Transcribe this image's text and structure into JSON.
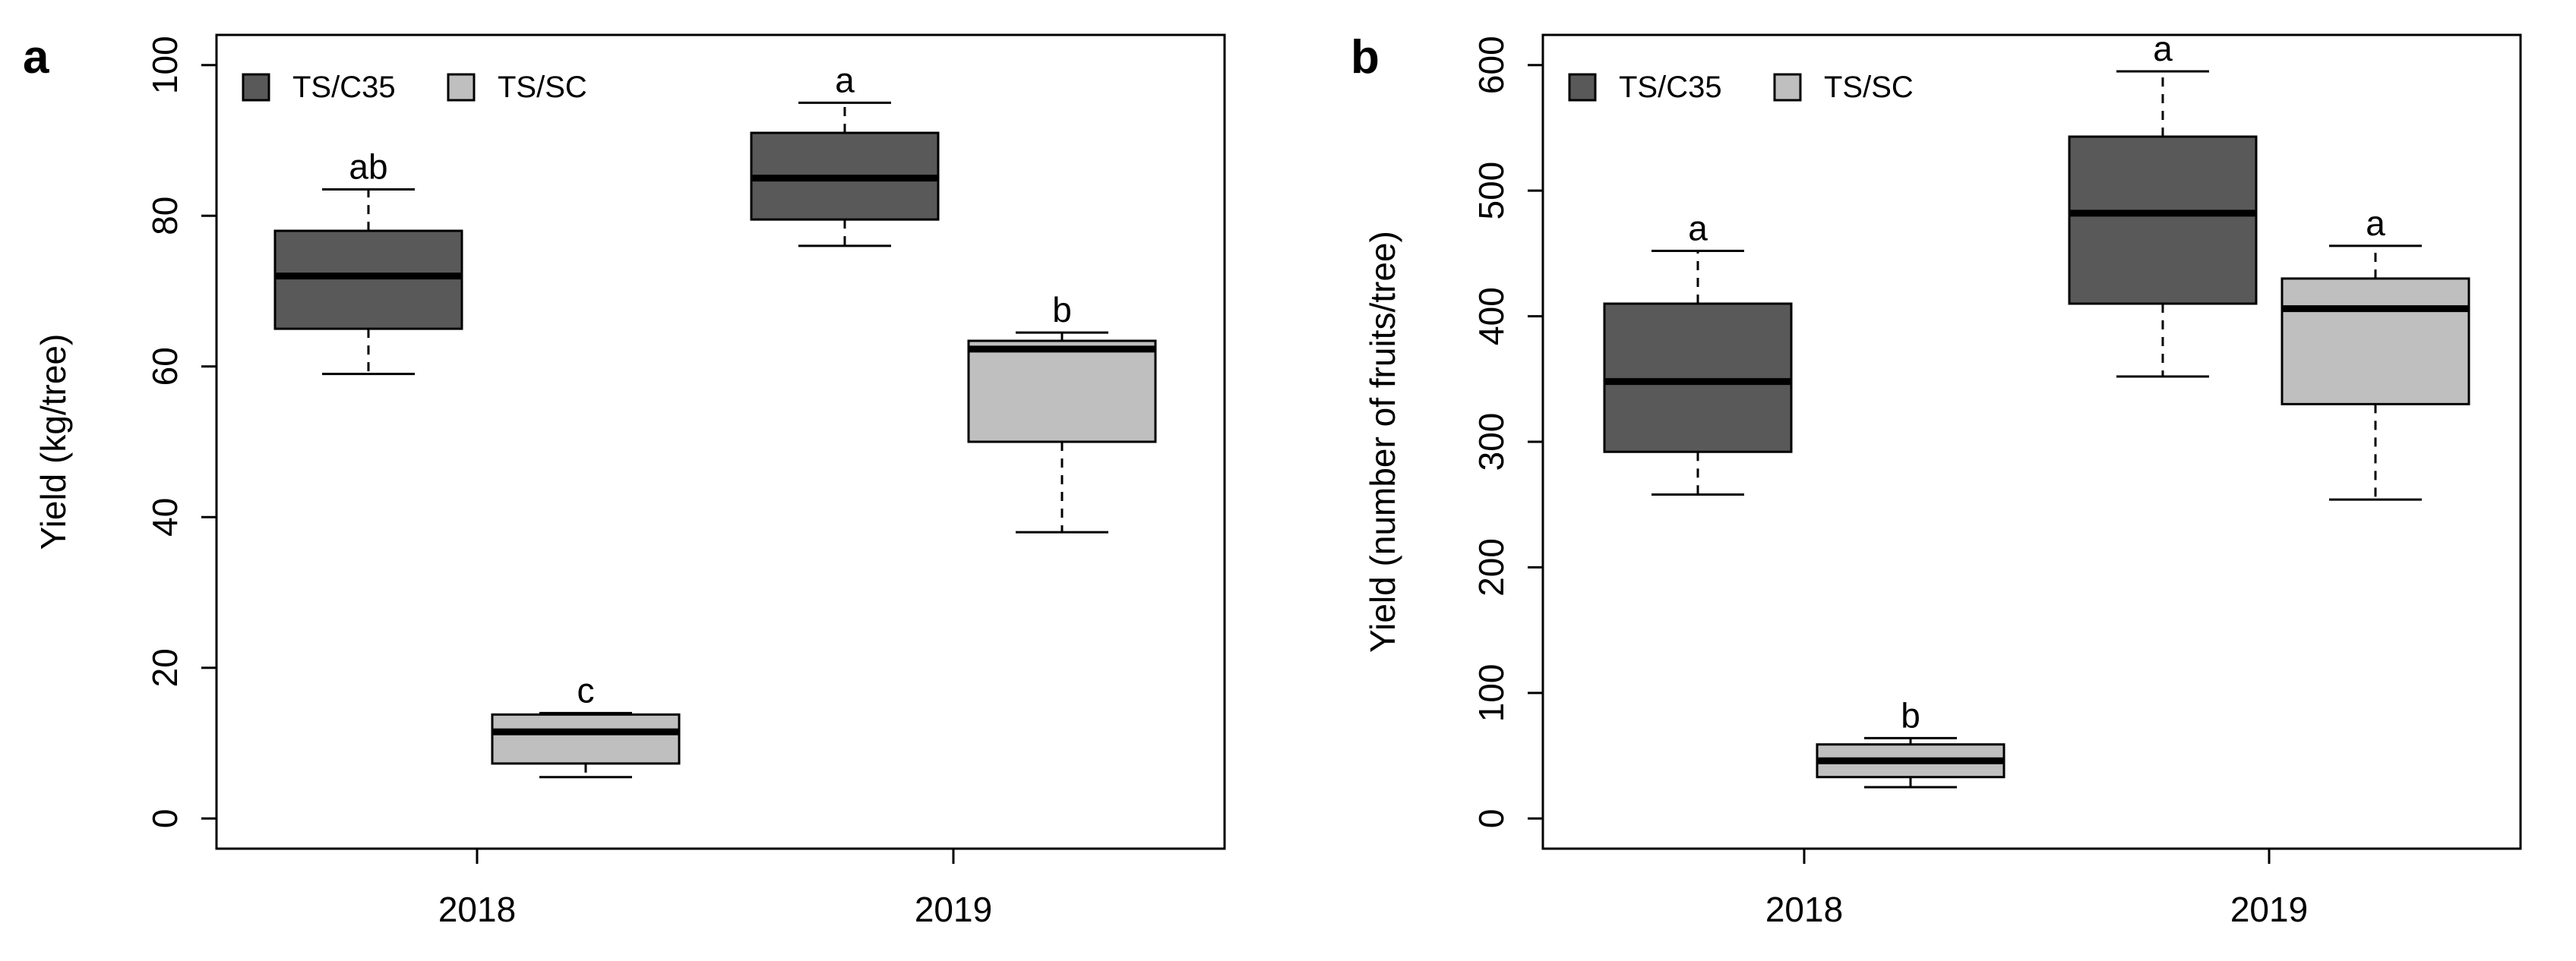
{
  "chart_data": [
    {
      "type": "boxplot",
      "panel": "a",
      "ylabel": "Yield (kg/tree)",
      "xlabel": "",
      "ylim": [
        -4,
        104
      ],
      "yticks": [
        0,
        20,
        40,
        60,
        80,
        100
      ],
      "categories": [
        "2018",
        "2019"
      ],
      "legend": {
        "placement": "top-left",
        "entries": [
          {
            "name": "TS/C35",
            "color": "#595959"
          },
          {
            "name": "TS/SC",
            "color": "#bfbfbf"
          }
        ]
      },
      "boxes": [
        {
          "category": "2018",
          "series": "TS/C35",
          "min": 59,
          "q1": 65,
          "median": 72,
          "q3": 78,
          "max": 83.5,
          "letter": "ab"
        },
        {
          "category": "2018",
          "series": "TS/SC",
          "min": 5.5,
          "q1": 7.3,
          "median": 11.5,
          "q3": 13.8,
          "max": 14,
          "letter": "c"
        },
        {
          "category": "2019",
          "series": "TS/C35",
          "min": 76,
          "q1": 79.5,
          "median": 85,
          "q3": 91,
          "max": 95,
          "letter": "a"
        },
        {
          "category": "2019",
          "series": "TS/SC",
          "min": 38,
          "q1": 50,
          "median": 62.3,
          "q3": 63.4,
          "max": 64.5,
          "letter": "b"
        }
      ]
    },
    {
      "type": "boxplot",
      "panel": "b",
      "ylabel": "Yield (number of fruits/tree)",
      "xlabel": "",
      "ylim": [
        -24,
        624
      ],
      "yticks": [
        0,
        100,
        200,
        300,
        400,
        500,
        600
      ],
      "categories": [
        "2018",
        "2019"
      ],
      "legend": {
        "placement": "top-left",
        "entries": [
          {
            "name": "TS/C35",
            "color": "#595959"
          },
          {
            "name": "TS/SC",
            "color": "#bfbfbf"
          }
        ]
      },
      "boxes": [
        {
          "category": "2018",
          "series": "TS/C35",
          "min": 258,
          "q1": 292,
          "median": 348,
          "q3": 410,
          "max": 452,
          "letter": "a"
        },
        {
          "category": "2018",
          "series": "TS/SC",
          "min": 25,
          "q1": 33,
          "median": 46,
          "q3": 59,
          "max": 64,
          "letter": "b"
        },
        {
          "category": "2019",
          "series": "TS/C35",
          "min": 352,
          "q1": 410,
          "median": 482,
          "q3": 543,
          "max": 595,
          "letter": "a"
        },
        {
          "category": "2019",
          "series": "TS/SC",
          "min": 254,
          "q1": 330,
          "median": 406,
          "q3": 430,
          "max": 456,
          "letter": "a"
        }
      ]
    }
  ]
}
